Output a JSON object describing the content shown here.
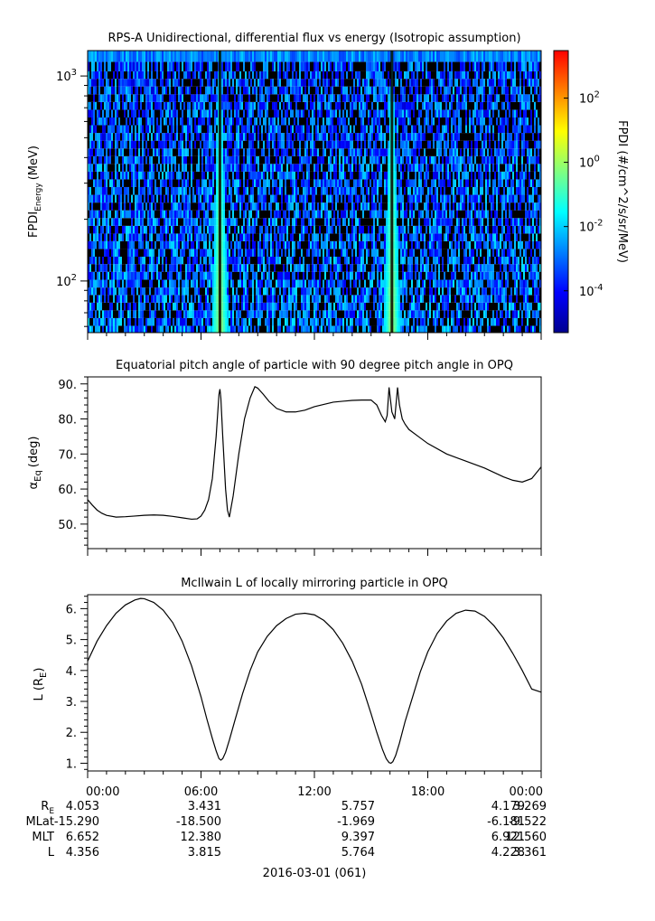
{
  "chart_data": [
    {
      "type": "heatmap",
      "title": "RPS-A Unidirectional, differential flux vs energy (Isotropic assumption)",
      "ylabel_main": "FPDI",
      "ylabel_sub": "Energy",
      "ylabel_unit": "(MeV)",
      "yscale": "log",
      "ylim": [
        56,
        1330
      ],
      "yticks": [
        {
          "value": 100,
          "base": "10",
          "exp": "2"
        },
        {
          "value": 1000,
          "base": "10",
          "exp": "3"
        }
      ],
      "energy_channels_mev": [
        58,
        63,
        69,
        75,
        82,
        89,
        97,
        106,
        116,
        126,
        137,
        150,
        163,
        178,
        194,
        212,
        231,
        252,
        275,
        300,
        327,
        357,
        389,
        424,
        463,
        505,
        551,
        601,
        655,
        715,
        780,
        850,
        930,
        1010,
        1100,
        1250
      ],
      "bright_bands": [
        {
          "center_hours": 7.0,
          "description": "high flux at low energy narrowing with energy"
        },
        {
          "center_hours": 16.1,
          "description": "high flux at low energy narrowing with energy"
        }
      ],
      "colorbar": {
        "label": "FPDI (#/cm^2/s/sr/MeV)",
        "scale": "log",
        "range": [
          5e-06,
          3000
        ],
        "ticks": [
          {
            "value": 100,
            "exp": "2"
          },
          {
            "value": 1,
            "exp": "0"
          },
          {
            "value": 0.01,
            "exp": "-2"
          },
          {
            "value": 0.0001,
            "exp": "-4"
          }
        ],
        "colors": [
          "#00008f",
          "#0000ff",
          "#0080ff",
          "#00ffff",
          "#80ff80",
          "#ffff00",
          "#ff8000",
          "#ff0000"
        ]
      }
    },
    {
      "type": "line",
      "title": "Equatorial pitch angle of particle with 90 degree pitch angle in OPQ",
      "ylabel_main": "α",
      "ylabel_sub": "Eq",
      "ylabel_unit": "(deg)",
      "ylim": [
        43,
        92
      ],
      "yticks": [
        "50.",
        "60.",
        "70.",
        "80.",
        "90."
      ],
      "xlim_hours": [
        0,
        24
      ],
      "x": [
        0,
        0.25,
        0.5,
        0.75,
        1.0,
        1.5,
        2.0,
        2.5,
        3.0,
        3.5,
        4.0,
        4.5,
        5.0,
        5.5,
        5.8,
        6.0,
        6.2,
        6.4,
        6.6,
        6.8,
        6.95,
        7.0,
        7.05,
        7.15,
        7.3,
        7.4,
        7.5,
        7.7,
        8.0,
        8.3,
        8.6,
        8.85,
        9.0,
        9.3,
        9.6,
        10.0,
        10.5,
        11.0,
        11.5,
        12.0,
        13.0,
        14.0,
        14.5,
        15.0,
        15.3,
        15.55,
        15.75,
        15.85,
        15.95,
        16.1,
        16.25,
        16.4,
        16.5,
        16.65,
        16.8,
        17.0,
        17.5,
        18.0,
        19.0,
        20.0,
        21.0,
        22.0,
        22.5,
        23.0,
        23.5,
        24.0
      ],
      "y": [
        57.0,
        55.4,
        54.0,
        53.1,
        52.5,
        52.0,
        52.1,
        52.3,
        52.5,
        52.6,
        52.5,
        52.2,
        51.8,
        51.4,
        51.5,
        52.3,
        54.0,
        57.0,
        63.0,
        75.0,
        87.0,
        88.5,
        86.0,
        75.0,
        60.0,
        54.0,
        52.0,
        58.0,
        70.0,
        80.0,
        86.0,
        89.2,
        88.8,
        87.0,
        85.0,
        83.0,
        82.0,
        82.0,
        82.5,
        83.5,
        84.8,
        85.3,
        85.4,
        85.4,
        84.0,
        81.0,
        79.2,
        81.0,
        89.0,
        82.0,
        80.0,
        89.0,
        84.0,
        80.0,
        78.5,
        77.0,
        75.0,
        73.0,
        70.0,
        68.0,
        66.0,
        63.5,
        62.5,
        62.0,
        63.0,
        66.3
      ]
    },
    {
      "type": "line",
      "title": "McIlwain L of locally mirroring particle in OPQ",
      "ylabel_main": "L (R",
      "ylabel_sub": "E",
      "ylabel_unit": ")",
      "ylim": [
        0.75,
        6.45
      ],
      "yticks": [
        "1.",
        "2.",
        "3.",
        "4.",
        "5.",
        "6."
      ],
      "xlim_hours": [
        0,
        24
      ],
      "x": [
        0,
        0.5,
        1.0,
        1.5,
        2.0,
        2.5,
        2.8,
        3.0,
        3.5,
        4.0,
        4.5,
        5.0,
        5.5,
        6.0,
        6.3,
        6.6,
        6.8,
        6.95,
        7.05,
        7.15,
        7.3,
        7.5,
        7.8,
        8.2,
        8.6,
        9.0,
        9.5,
        10.0,
        10.5,
        11.0,
        11.5,
        12.0,
        12.5,
        13.0,
        13.5,
        14.0,
        14.5,
        15.0,
        15.3,
        15.6,
        15.8,
        15.95,
        16.05,
        16.15,
        16.3,
        16.5,
        16.8,
        17.2,
        17.6,
        18.0,
        18.5,
        19.0,
        19.5,
        20.0,
        20.5,
        21.0,
        21.5,
        22.0,
        22.5,
        23.0,
        23.5,
        24.0
      ],
      "y": [
        4.3,
        4.95,
        5.45,
        5.85,
        6.12,
        6.28,
        6.33,
        6.32,
        6.2,
        5.95,
        5.55,
        4.95,
        4.15,
        3.15,
        2.45,
        1.8,
        1.4,
        1.15,
        1.1,
        1.15,
        1.35,
        1.75,
        2.4,
        3.25,
        4.0,
        4.6,
        5.1,
        5.45,
        5.68,
        5.82,
        5.85,
        5.8,
        5.62,
        5.32,
        4.88,
        4.3,
        3.55,
        2.6,
        2.0,
        1.45,
        1.15,
        1.02,
        1.0,
        1.05,
        1.25,
        1.65,
        2.35,
        3.15,
        3.95,
        4.6,
        5.2,
        5.6,
        5.85,
        5.95,
        5.92,
        5.75,
        5.45,
        5.05,
        4.55,
        4.0,
        3.4,
        3.3
      ]
    }
  ],
  "time_axis": {
    "tick_labels": [
      "00:00",
      "06:00",
      "12:00",
      "18:00",
      "00:00"
    ],
    "date_label": "2016-03-01 (061)"
  },
  "ephemeris": {
    "row_labels": [
      {
        "main": "R",
        "sub": "E"
      },
      {
        "main": "MLat",
        "sub": ""
      },
      {
        "main": "MLT",
        "sub": ""
      },
      {
        "main": "L",
        "sub": ""
      }
    ],
    "columns": [
      [
        "4.053",
        "-15.290",
        "6.652",
        "4.356"
      ],
      [
        "3.431",
        "-18.500",
        "12.380",
        "3.815"
      ],
      [
        "5.757",
        "-1.969",
        "9.397",
        "5.764"
      ],
      [
        "4.179",
        "-6.181",
        "6.921",
        "4.228"
      ],
      [
        "3.269",
        "-9.522",
        "12.560",
        "3.361"
      ]
    ]
  }
}
